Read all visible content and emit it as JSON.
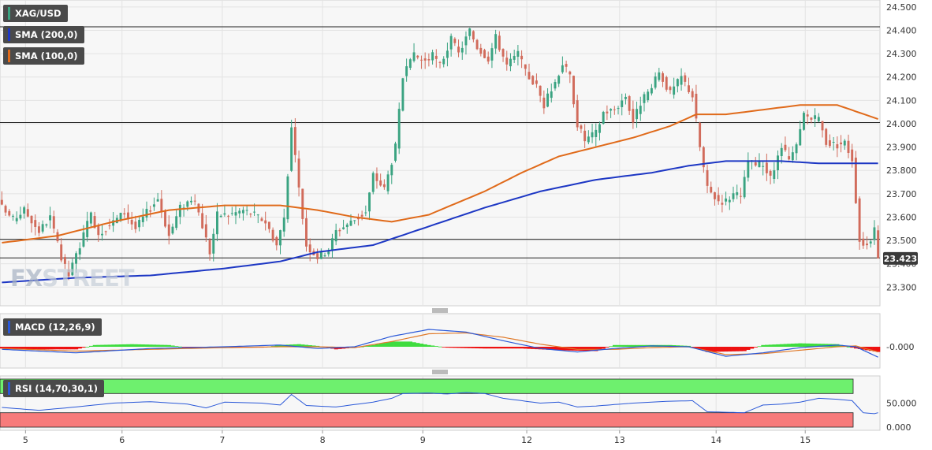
{
  "symbol": "XAG/USD",
  "indicators": {
    "sma200_label": "SMA (200,0)",
    "sma100_label": "SMA (100,0)",
    "macd_label": "MACD (12,26,9)",
    "rsi_label": "RSI (14,70,30,1)"
  },
  "watermark": {
    "fx": "FX",
    "rest": "STREET"
  },
  "colors": {
    "bull": "#3aa381",
    "bear": "#d16b5b",
    "sma200": "#1d37c4",
    "sma100": "#e06a1a",
    "macd_pos": "#3edc3e",
    "macd_neg": "#ee1111",
    "macd_line": "#2a58d8",
    "signal_line": "#e07a2a",
    "rsi_line": "#2a58d8",
    "rsi_overbought": "#6ef06e",
    "rsi_oversold": "#f77b7b",
    "price_badge": "#3a3a3a"
  },
  "chart_data": [
    {
      "type": "candlestick",
      "title": "XAG/USD",
      "ylim": [
        23.22,
        24.53
      ],
      "yticks": [
        23.3,
        23.4,
        23.5,
        23.6,
        23.7,
        23.8,
        23.9,
        24.0,
        24.1,
        24.2,
        24.3,
        24.4,
        24.5
      ],
      "ytick_labels": [
        "23.300",
        "23.400",
        "23.500",
        "23.600",
        "23.700",
        "23.800",
        "23.900",
        "24.000",
        "24.100",
        "24.200",
        "24.300",
        "24.400",
        "24.500"
      ],
      "x_labels": [
        "5",
        "6",
        "7",
        "8",
        "9",
        "12",
        "13",
        "14",
        "15"
      ],
      "horizontal_levels": [
        24.415,
        24.005,
        23.505,
        23.425
      ],
      "last_price": 23.423,
      "last_price_label": "23.423",
      "close_path": [
        [
          0,
          23.64
        ],
        [
          3,
          23.59
        ],
        [
          6,
          23.63
        ],
        [
          10,
          23.54
        ],
        [
          13,
          23.6
        ],
        [
          16,
          23.42
        ],
        [
          18,
          23.35
        ],
        [
          21,
          23.48
        ],
        [
          24,
          23.61
        ],
        [
          26,
          23.53
        ],
        [
          30,
          23.58
        ],
        [
          33,
          23.62
        ],
        [
          36,
          23.55
        ],
        [
          39,
          23.62
        ],
        [
          42,
          23.68
        ],
        [
          45,
          23.52
        ],
        [
          48,
          23.64
        ],
        [
          51,
          23.68
        ],
        [
          53,
          23.62
        ],
        [
          56,
          23.45
        ],
        [
          58,
          23.61
        ],
        [
          61,
          23.61
        ],
        [
          65,
          23.63
        ],
        [
          68,
          23.61
        ],
        [
          71,
          23.58
        ],
        [
          74,
          23.48
        ],
        [
          76,
          23.6
        ],
        [
          78,
          23.98
        ],
        [
          80,
          23.72
        ],
        [
          82,
          23.48
        ],
        [
          85,
          23.43
        ],
        [
          88,
          23.46
        ],
        [
          90,
          23.54
        ],
        [
          92,
          23.56
        ],
        [
          95,
          23.59
        ],
        [
          98,
          23.62
        ],
        [
          100,
          23.78
        ],
        [
          103,
          23.72
        ],
        [
          106,
          23.9
        ],
        [
          108,
          24.2
        ],
        [
          111,
          24.29
        ],
        [
          114,
          24.27
        ],
        [
          116,
          24.29
        ],
        [
          118,
          24.25
        ],
        [
          121,
          24.36
        ],
        [
          123,
          24.3
        ],
        [
          126,
          24.4
        ],
        [
          128,
          24.33
        ],
        [
          131,
          24.28
        ],
        [
          133,
          24.37
        ],
        [
          136,
          24.25
        ],
        [
          139,
          24.3
        ],
        [
          141,
          24.22
        ],
        [
          144,
          24.16
        ],
        [
          146,
          24.08
        ],
        [
          149,
          24.18
        ],
        [
          151,
          24.26
        ],
        [
          153,
          24.2
        ],
        [
          155,
          24.0
        ],
        [
          157,
          23.93
        ],
        [
          160,
          23.96
        ],
        [
          162,
          24.05
        ],
        [
          165,
          24.06
        ],
        [
          168,
          24.12
        ],
        [
          170,
          24.01
        ],
        [
          172,
          24.09
        ],
        [
          175,
          24.15
        ],
        [
          177,
          24.22
        ],
        [
          180,
          24.13
        ],
        [
          183,
          24.2
        ],
        [
          186,
          24.12
        ],
        [
          188,
          23.9
        ],
        [
          190,
          23.72
        ],
        [
          193,
          23.67
        ],
        [
          195,
          23.67
        ],
        [
          197,
          23.7
        ],
        [
          199,
          23.68
        ],
        [
          201,
          23.84
        ],
        [
          203,
          23.82
        ],
        [
          205,
          23.83
        ],
        [
          207,
          23.76
        ],
        [
          210,
          23.9
        ],
        [
          212,
          23.84
        ],
        [
          214,
          23.9
        ],
        [
          216,
          24.04
        ],
        [
          218,
          24.02
        ],
        [
          220,
          24.02
        ],
        [
          222,
          23.92
        ],
        [
          225,
          23.91
        ],
        [
          227,
          23.92
        ],
        [
          229,
          23.85
        ],
        [
          231,
          23.5
        ],
        [
          233,
          23.48
        ],
        [
          235,
          23.54
        ],
        [
          236,
          23.423
        ]
      ],
      "series": [
        {
          "name": "SMA (200,0)",
          "points": [
            [
              0,
              23.32
            ],
            [
              20,
              23.34
            ],
            [
              40,
              23.35
            ],
            [
              60,
              23.38
            ],
            [
              75,
              23.41
            ],
            [
              85,
              23.45
            ],
            [
              100,
              23.48
            ],
            [
              115,
              23.56
            ],
            [
              130,
              23.64
            ],
            [
              145,
              23.71
            ],
            [
              160,
              23.76
            ],
            [
              175,
              23.79
            ],
            [
              185,
              23.82
            ],
            [
              195,
              23.84
            ],
            [
              210,
              23.84
            ],
            [
              220,
              23.83
            ],
            [
              236,
              23.83
            ]
          ]
        },
        {
          "name": "SMA (100,0)",
          "points": [
            [
              0,
              23.49
            ],
            [
              15,
              23.52
            ],
            [
              30,
              23.58
            ],
            [
              45,
              23.63
            ],
            [
              60,
              23.65
            ],
            [
              75,
              23.65
            ],
            [
              85,
              23.63
            ],
            [
              95,
              23.6
            ],
            [
              105,
              23.58
            ],
            [
              115,
              23.61
            ],
            [
              130,
              23.71
            ],
            [
              140,
              23.79
            ],
            [
              150,
              23.86
            ],
            [
              160,
              23.9
            ],
            [
              170,
              23.94
            ],
            [
              180,
              23.99
            ],
            [
              187,
              24.04
            ],
            [
              195,
              24.04
            ],
            [
              205,
              24.06
            ],
            [
              215,
              24.08
            ],
            [
              225,
              24.08
            ],
            [
              236,
              24.02
            ]
          ]
        }
      ]
    },
    {
      "type": "bar",
      "title": "MACD (12,26,9)",
      "ytick_labels": [
        "-0.000"
      ],
      "histogram_path": [
        [
          0,
          -0.02
        ],
        [
          10,
          -0.03
        ],
        [
          20,
          -0.03
        ],
        [
          25,
          0.02
        ],
        [
          35,
          0.03
        ],
        [
          45,
          0.02
        ],
        [
          50,
          -0.01
        ],
        [
          60,
          -0.01
        ],
        [
          70,
          -0.01
        ],
        [
          75,
          0.02
        ],
        [
          80,
          0.03
        ],
        [
          85,
          0.01
        ],
        [
          90,
          -0.03
        ],
        [
          95,
          -0.01
        ],
        [
          100,
          0.02
        ],
        [
          105,
          0.06
        ],
        [
          110,
          0.06
        ],
        [
          115,
          0.02
        ],
        [
          120,
          -0.01
        ],
        [
          130,
          -0.02
        ],
        [
          140,
          -0.02
        ],
        [
          150,
          -0.04
        ],
        [
          160,
          -0.05
        ],
        [
          165,
          0.02
        ],
        [
          175,
          0.02
        ],
        [
          180,
          0.02
        ],
        [
          185,
          0.01
        ],
        [
          190,
          -0.06
        ],
        [
          200,
          -0.05
        ],
        [
          205,
          0.02
        ],
        [
          215,
          0.04
        ],
        [
          225,
          0.03
        ],
        [
          230,
          -0.02
        ],
        [
          236,
          -0.06
        ]
      ],
      "series": [
        {
          "name": "MACD",
          "points": [
            [
              0,
              -0.03
            ],
            [
              20,
              -0.07
            ],
            [
              40,
              -0.02
            ],
            [
              60,
              0.0
            ],
            [
              75,
              0.02
            ],
            [
              85,
              -0.02
            ],
            [
              95,
              0.0
            ],
            [
              105,
              0.12
            ],
            [
              115,
              0.2
            ],
            [
              125,
              0.17
            ],
            [
              135,
              0.07
            ],
            [
              145,
              -0.02
            ],
            [
              155,
              -0.06
            ],
            [
              165,
              -0.02
            ],
            [
              175,
              0.01
            ],
            [
              185,
              0.0
            ],
            [
              195,
              -0.11
            ],
            [
              205,
              -0.07
            ],
            [
              215,
              -0.01
            ],
            [
              225,
              0.02
            ],
            [
              230,
              0.0
            ],
            [
              236,
              -0.12
            ]
          ]
        },
        {
          "name": "Signal",
          "points": [
            [
              0,
              -0.02
            ],
            [
              20,
              -0.05
            ],
            [
              40,
              -0.03
            ],
            [
              60,
              -0.01
            ],
            [
              75,
              0.0
            ],
            [
              85,
              0.0
            ],
            [
              95,
              -0.01
            ],
            [
              105,
              0.06
            ],
            [
              115,
              0.15
            ],
            [
              125,
              0.16
            ],
            [
              135,
              0.11
            ],
            [
              145,
              0.03
            ],
            [
              155,
              -0.03
            ],
            [
              165,
              -0.03
            ],
            [
              175,
              -0.01
            ],
            [
              185,
              0.0
            ],
            [
              195,
              -0.09
            ],
            [
              205,
              -0.08
            ],
            [
              215,
              -0.04
            ],
            [
              225,
              0.0
            ],
            [
              230,
              0.01
            ],
            [
              236,
              -0.06
            ]
          ]
        }
      ]
    },
    {
      "type": "line",
      "title": "RSI (14,70,30,1)",
      "ylim": [
        0,
        100
      ],
      "ytick_labels": [
        "50.000",
        "0.000"
      ],
      "overbought": 70,
      "oversold": 30,
      "series": [
        {
          "name": "RSI",
          "points": [
            [
              0,
              41
            ],
            [
              10,
              35
            ],
            [
              20,
              42
            ],
            [
              30,
              50
            ],
            [
              40,
              53
            ],
            [
              50,
              48
            ],
            [
              55,
              40
            ],
            [
              60,
              52
            ],
            [
              70,
              50
            ],
            [
              75,
              46
            ],
            [
              78,
              68
            ],
            [
              82,
              45
            ],
            [
              90,
              42
            ],
            [
              100,
              52
            ],
            [
              105,
              60
            ],
            [
              108,
              70
            ],
            [
              115,
              71
            ],
            [
              120,
              69
            ],
            [
              125,
              72
            ],
            [
              130,
              70
            ],
            [
              135,
              60
            ],
            [
              140,
              55
            ],
            [
              145,
              50
            ],
            [
              150,
              52
            ],
            [
              155,
              42
            ],
            [
              160,
              44
            ],
            [
              170,
              50
            ],
            [
              180,
              54
            ],
            [
              186,
              55
            ],
            [
              190,
              32
            ],
            [
              200,
              30
            ],
            [
              205,
              46
            ],
            [
              210,
              48
            ],
            [
              215,
              52
            ],
            [
              220,
              60
            ],
            [
              225,
              58
            ],
            [
              229,
              55
            ],
            [
              232,
              30
            ],
            [
              235,
              28
            ],
            [
              236,
              30
            ]
          ]
        }
      ]
    }
  ]
}
